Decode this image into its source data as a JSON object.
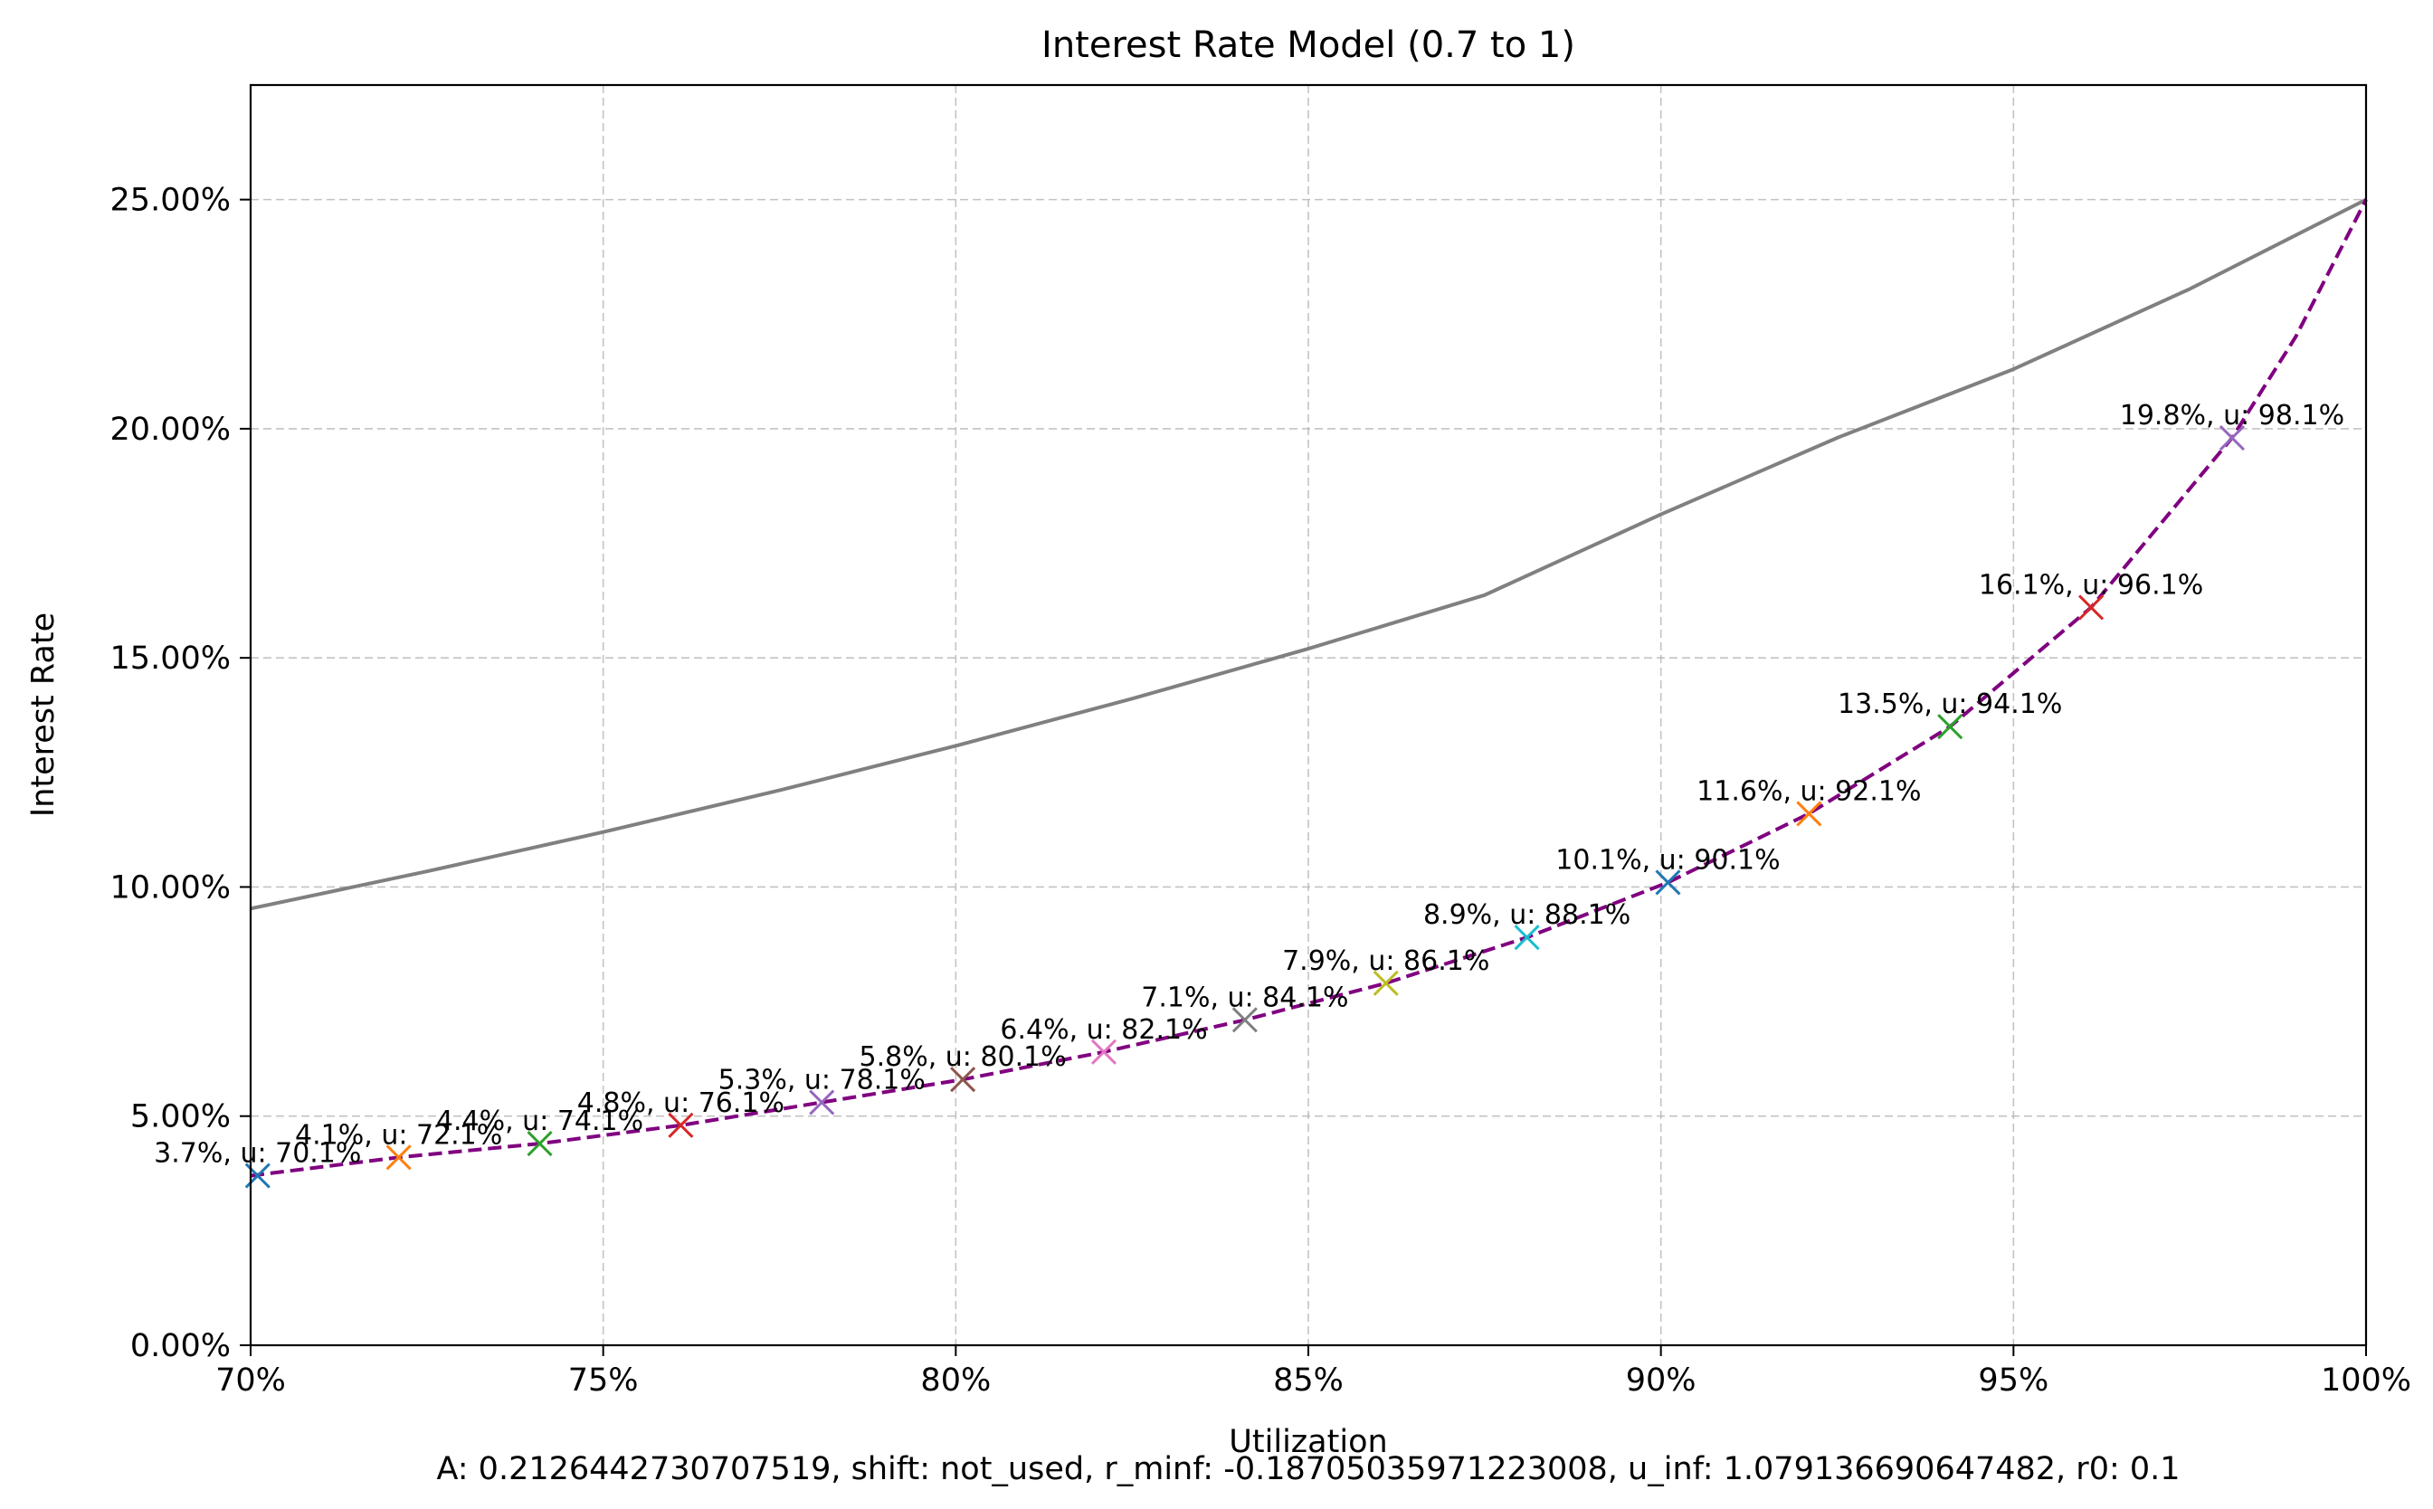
{
  "chart_data": {
    "type": "line",
    "title": "Interest Rate Model (0.7 to 1)",
    "xlabel": "Utilization",
    "ylabel": "Interest Rate",
    "footer": "A: 0.2126442730707519, shift: not_used, r_minf: -0.18705035971223008, u_inf: 1.079136690647482, r0: 0.1",
    "xlim": [
      0.7,
      1.0
    ],
    "ylim": [
      0.0,
      0.275
    ],
    "x_ticks": [
      0.7,
      0.75,
      0.8,
      0.85,
      0.9,
      0.95,
      1.0
    ],
    "x_tick_labels": [
      "70%",
      "75%",
      "80%",
      "85%",
      "90%",
      "95%",
      "100%"
    ],
    "y_ticks": [
      0.0,
      0.05,
      0.1,
      0.15,
      0.2,
      0.25
    ],
    "y_tick_labels": [
      "0.00%",
      "5.00%",
      "10.00%",
      "15.00%",
      "20.00%",
      "25.00%"
    ],
    "grid": true,
    "grid_style": "dashed",
    "series": [
      {
        "style": "solid",
        "color": "#808080",
        "x": [
          0.7,
          0.725,
          0.75,
          0.775,
          0.8,
          0.825,
          0.85,
          0.875,
          0.9,
          0.925,
          0.95,
          0.975,
          1.0
        ],
        "y": [
          0.0953,
          0.1034,
          0.112,
          0.1211,
          0.1308,
          0.1411,
          0.152,
          0.1637,
          0.1813,
          0.198,
          0.213,
          0.2305,
          0.25
        ]
      },
      {
        "style": "dashed",
        "color": "#800080",
        "x": [
          0.7,
          0.721,
          0.741,
          0.761,
          0.781,
          0.801,
          0.821,
          0.841,
          0.861,
          0.881,
          0.901,
          0.921,
          0.941,
          0.961,
          0.981,
          0.99,
          1.0
        ],
        "y": [
          0.037,
          0.041,
          0.044,
          0.048,
          0.053,
          0.058,
          0.064,
          0.071,
          0.079,
          0.089,
          0.101,
          0.116,
          0.135,
          0.161,
          0.198,
          0.22,
          0.25
        ]
      }
    ],
    "markers": [
      {
        "x": 0.701,
        "y": 0.037,
        "label": "3.7%, u: 70.1%",
        "color": "#1f77b4"
      },
      {
        "x": 0.721,
        "y": 0.041,
        "label": "4.1%, u: 72.1%",
        "color": "#ff7f0e"
      },
      {
        "x": 0.741,
        "y": 0.044,
        "label": "4.4%, u: 74.1%",
        "color": "#2ca02c"
      },
      {
        "x": 0.761,
        "y": 0.048,
        "label": "4.8%, u: 76.1%",
        "color": "#d62728"
      },
      {
        "x": 0.781,
        "y": 0.053,
        "label": "5.3%, u: 78.1%",
        "color": "#9467bd"
      },
      {
        "x": 0.801,
        "y": 0.058,
        "label": "5.8%, u: 80.1%",
        "color": "#8c564b"
      },
      {
        "x": 0.821,
        "y": 0.064,
        "label": "6.4%, u: 82.1%",
        "color": "#e377c2"
      },
      {
        "x": 0.841,
        "y": 0.071,
        "label": "7.1%, u: 84.1%",
        "color": "#7f7f7f"
      },
      {
        "x": 0.861,
        "y": 0.079,
        "label": "7.9%, u: 86.1%",
        "color": "#bcbd22"
      },
      {
        "x": 0.881,
        "y": 0.089,
        "label": "8.9%, u: 88.1%",
        "color": "#17becf"
      },
      {
        "x": 0.901,
        "y": 0.101,
        "label": "10.1%, u: 90.1%",
        "color": "#1f77b4"
      },
      {
        "x": 0.921,
        "y": 0.116,
        "label": "11.6%, u: 92.1%",
        "color": "#ff7f0e"
      },
      {
        "x": 0.941,
        "y": 0.135,
        "label": "13.5%, u: 94.1%",
        "color": "#2ca02c"
      },
      {
        "x": 0.961,
        "y": 0.161,
        "label": "16.1%, u: 96.1%",
        "color": "#d62728"
      },
      {
        "x": 0.981,
        "y": 0.198,
        "label": "19.8%, u: 98.1%",
        "color": "#9467bd"
      }
    ]
  }
}
